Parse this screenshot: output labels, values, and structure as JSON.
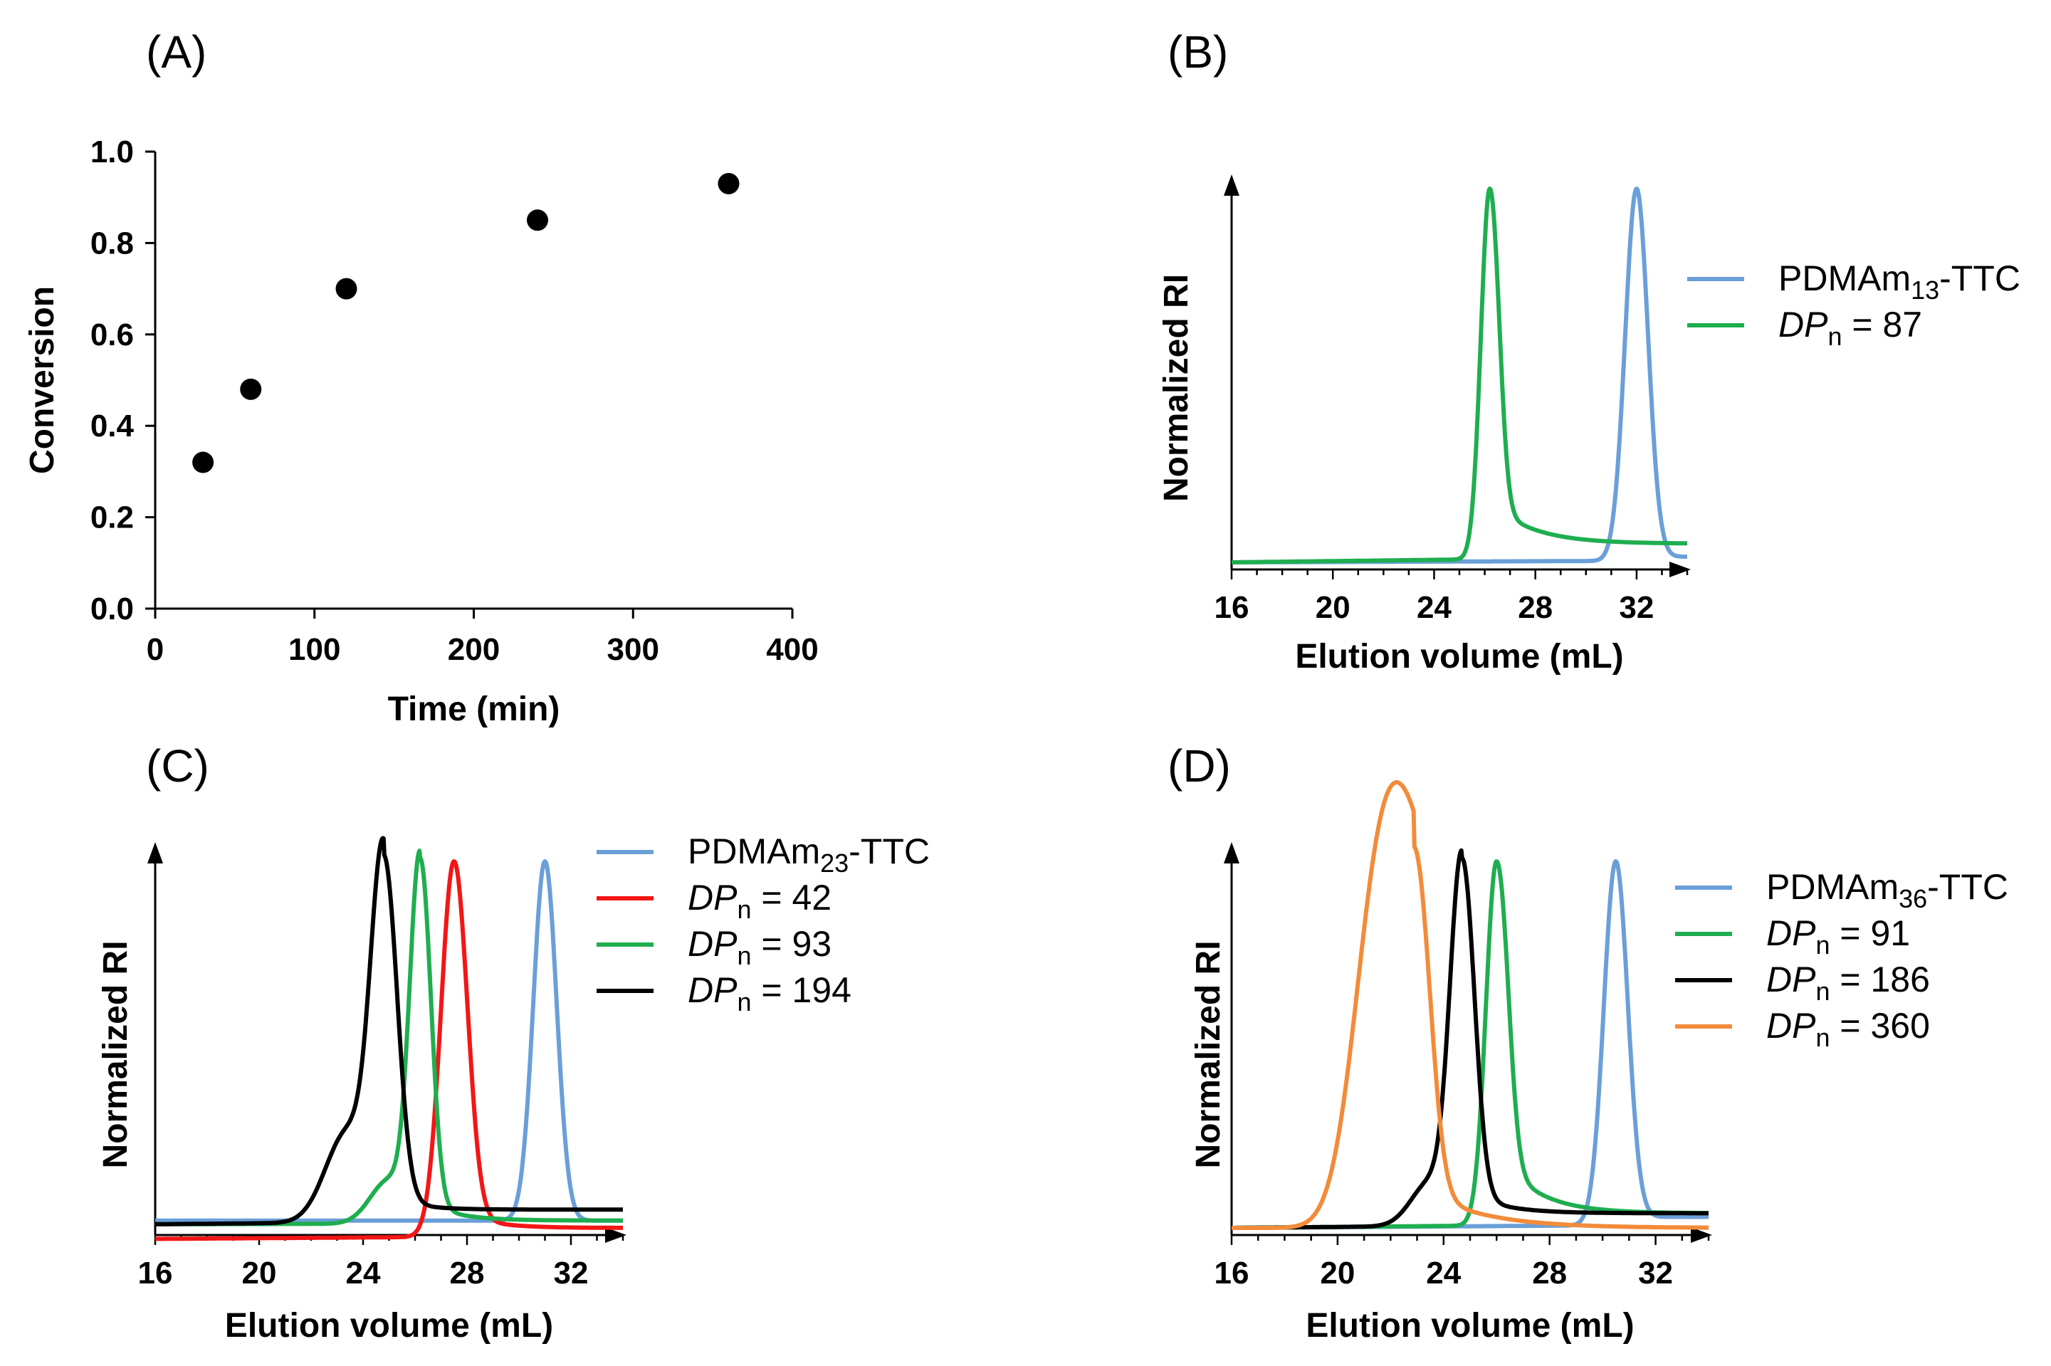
{
  "colors": {
    "blue": "#6a9fd8",
    "green": "#1fae4f",
    "red": "#f21616",
    "black": "#000000",
    "orange": "#f28b3a"
  },
  "chart_data": [
    {
      "panel": "(A)",
      "type": "scatter",
      "xlabel": "Time (min)",
      "ylabel": "Conversion",
      "xlim": [
        0,
        400
      ],
      "ylim": [
        0,
        1.0
      ],
      "x_ticks": [
        "0",
        "100",
        "200",
        "300",
        "400"
      ],
      "y_ticks": [
        "0.0",
        "0.2",
        "0.4",
        "0.6",
        "0.8",
        "1.0"
      ],
      "x": [
        30,
        60,
        120,
        240,
        360
      ],
      "y": [
        0.32,
        0.48,
        0.7,
        0.85,
        0.93
      ]
    },
    {
      "panel": "(B)",
      "type": "line",
      "xlabel": "Elution volume (mL)",
      "ylabel": "Normalized RI",
      "xlim": [
        16,
        34
      ],
      "x_ticks": [
        "16",
        "20",
        "24",
        "28",
        "32"
      ],
      "series": [
        {
          "name": "PDMAm",
          "sub": "13",
          "suffix": "-TTC",
          "color": "blue",
          "peak": 32.0,
          "width": 0.45,
          "base_start": 0.0,
          "base_end": 0.015
        },
        {
          "prefix": "DP",
          "sub": "n",
          "name": " = 87",
          "color": "green",
          "peak": 26.2,
          "width": 0.35,
          "tail": 1.6,
          "tail_amp": 0.12,
          "base_start": 0.0,
          "base_end": 0.05
        }
      ]
    },
    {
      "panel": "(C)",
      "type": "line",
      "xlabel": "Elution volume (mL)",
      "ylabel": "Normalized RI",
      "xlim": [
        16,
        34
      ],
      "x_ticks": [
        "16",
        "20",
        "24",
        "28",
        "32"
      ],
      "series": [
        {
          "name": "PDMAm",
          "sub": "23",
          "suffix": "-TTC",
          "color": "blue",
          "peak": 31.0,
          "width": 0.45,
          "base_start": 0.02,
          "base_end": 0.02
        },
        {
          "prefix": "DP",
          "sub": "n",
          "name": " = 42",
          "color": "red",
          "peak": 27.5,
          "width": 0.5,
          "tail": 1.2,
          "tail_amp": 0.05,
          "base_start": -0.03,
          "base_end": 0.0
        },
        {
          "prefix": "DP",
          "sub": "n",
          "name": " = 93",
          "color": "green",
          "peak": 26.2,
          "width": 0.4,
          "tail": 1.2,
          "tail_amp": 0.06,
          "shoulder_at": 25.0,
          "shoulder_amp": 0.12,
          "base_start": 0.01,
          "base_end": 0.02
        },
        {
          "prefix": "DP",
          "sub": "n",
          "name": " = 194",
          "color": "black",
          "peak": 24.8,
          "width": 0.5,
          "shoulder_at": 23.4,
          "shoulder_amp": 0.25,
          "tail": 1.0,
          "tail_amp": 0.05,
          "base_start": 0.01,
          "base_end": 0.05
        }
      ]
    },
    {
      "panel": "(D)",
      "type": "line",
      "xlabel": "Elution volume (mL)",
      "ylabel": "Normalized RI",
      "xlim": [
        16,
        34
      ],
      "x_ticks": [
        "16",
        "20",
        "24",
        "28",
        "32"
      ],
      "series": [
        {
          "name": "PDMAm",
          "sub": "36",
          "suffix": "-TTC",
          "color": "blue",
          "peak": 30.5,
          "width": 0.45,
          "base_start": 0.0,
          "base_end": 0.03
        },
        {
          "prefix": "DP",
          "sub": "n",
          "name": " = 91",
          "color": "green",
          "peak": 26.0,
          "width": 0.4,
          "tail": 1.4,
          "tail_amp": 0.18,
          "base_start": 0.0,
          "base_end": 0.04
        },
        {
          "prefix": "DP",
          "sub": "n",
          "name": " = 186",
          "color": "black",
          "peak": 24.7,
          "width": 0.45,
          "shoulder_at": 23.5,
          "shoulder_amp": 0.12,
          "tail": 1.3,
          "tail_amp": 0.07,
          "base_start": 0.0,
          "base_end": 0.04
        },
        {
          "prefix": "DP",
          "sub": "n",
          "name": " = 360",
          "color": "orange",
          "peak": 22.9,
          "width": 0.55,
          "shoulder_at": 21.4,
          "shoulder_amp": 0.52,
          "front": 1.3,
          "tail": 2.2,
          "tail_amp": 0.12,
          "base_start": 0.0,
          "base_end": 0.0
        }
      ]
    }
  ]
}
